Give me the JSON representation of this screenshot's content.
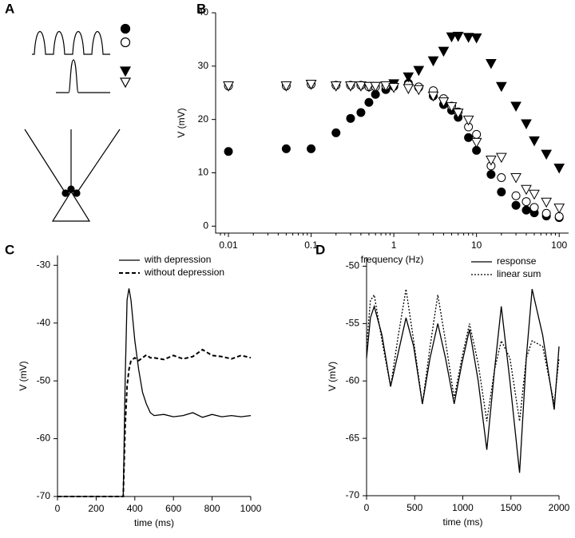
{
  "panel_labels": [
    "A",
    "B",
    "C",
    "D"
  ],
  "chart_data": [
    {
      "type": "scatter",
      "xlabel": "frequency (Hz)",
      "ylabel": "V  (mV)",
      "xscale": "log",
      "xlim": [
        0.007,
        130
      ],
      "ylim": [
        -1.3,
        40
      ],
      "xticks": [
        0.01,
        0.1,
        1,
        10,
        100
      ],
      "yticks": [
        0,
        10,
        20,
        30,
        40
      ],
      "x": [
        0.01,
        0.05,
        0.1,
        0.2,
        0.3,
        0.4,
        0.5,
        0.6,
        0.8,
        1,
        1.5,
        2,
        3,
        4,
        5,
        6,
        8,
        10,
        15,
        20,
        30,
        40,
        50,
        70,
        100
      ],
      "series": [
        {
          "marker": "circle",
          "filled": true,
          "color": "#000000",
          "values": [
            14,
            14.5,
            14.5,
            17.5,
            20.2,
            21.3,
            23.2,
            24.7,
            25.6,
            26.2,
            26.8,
            26,
            24.4,
            22.8,
            21.7,
            20.4,
            16.6,
            14.2,
            9.7,
            6.4,
            3.9,
            3,
            2.5,
            1.9,
            1.6
          ]
        },
        {
          "marker": "circle",
          "filled": false,
          "color": "#000000",
          "values": [
            26.3,
            26.3,
            26.6,
            26.4,
            26.4,
            26.4,
            26.1,
            26.1,
            26.3,
            26.4,
            26.5,
            26.1,
            25.4,
            23.9,
            22.5,
            21.4,
            18.6,
            17.2,
            11.3,
            9.1,
            5.7,
            4.6,
            3.5,
            2.4,
            1.8
          ]
        },
        {
          "marker": "triangle",
          "filled": true,
          "color": "#000000",
          "values": [
            26.3,
            26.3,
            26.6,
            26.3,
            26.3,
            26.3,
            26.2,
            26.2,
            26.3,
            26.7,
            28,
            29.2,
            31,
            32.8,
            35.5,
            35.6,
            35.4,
            35.3,
            30.5,
            26.2,
            22.5,
            19.2,
            16,
            13.5,
            10.9
          ]
        },
        {
          "marker": "triangle",
          "filled": false,
          "color": "#000000",
          "values": [
            26.3,
            26.3,
            26.6,
            26.3,
            26.3,
            26.3,
            26.2,
            26.2,
            26.3,
            26,
            25.8,
            25.6,
            24.4,
            23.3,
            22.4,
            21.2,
            19.9,
            15.7,
            12.4,
            12.9,
            9.1,
            6.9,
            6,
            4.5,
            3.4
          ]
        }
      ]
    },
    {
      "type": "line",
      "xlabel": "time  (ms)",
      "ylabel": "V  (mV)",
      "legend": "upper right",
      "xlim": [
        0,
        1000
      ],
      "ylim": [
        -70,
        -28.3
      ],
      "xticks": [
        0,
        200,
        400,
        600,
        800,
        1000
      ],
      "yticks": [
        -70,
        -60,
        -50,
        -40,
        -30
      ],
      "x": [
        0,
        100,
        200,
        300,
        340,
        350,
        360,
        370,
        380,
        400,
        420,
        440,
        460,
        480,
        500,
        550,
        600,
        650,
        700,
        750,
        800,
        850,
        900,
        950,
        1000
      ],
      "series": [
        {
          "name": "with depression",
          "dash": "solid",
          "color": "#000000",
          "values": [
            -70,
            -70,
            -70,
            -70,
            -70,
            -50,
            -36,
            -34,
            -36,
            -43,
            -48,
            -52,
            -54,
            -55.5,
            -56,
            -55.8,
            -56.2,
            -56,
            -55.5,
            -56.3,
            -55.8,
            -56.2,
            -56,
            -56.2,
            -56
          ]
        },
        {
          "name": "without depression",
          "dash": "dashed",
          "color": "#000000",
          "values": [
            -70,
            -70,
            -70,
            -70,
            -70,
            -58,
            -51,
            -48,
            -46.5,
            -46,
            -46.5,
            -46,
            -45.5,
            -46,
            -46,
            -46.3,
            -45.6,
            -46.2,
            -45.8,
            -44.6,
            -45.6,
            -45.8,
            -46.2,
            -45.6,
            -46
          ]
        }
      ]
    },
    {
      "type": "line",
      "xlabel": "time  (ms)",
      "ylabel": "V  (mV)",
      "legend": "upper right",
      "xlim": [
        0,
        2000
      ],
      "ylim": [
        -70,
        -49.2
      ],
      "xticks": [
        0,
        500,
        1000,
        1500,
        2000
      ],
      "yticks": [
        -70,
        -65,
        -60,
        -55,
        -50
      ],
      "x": [
        0,
        40,
        80,
        160,
        250,
        330,
        410,
        490,
        580,
        660,
        740,
        820,
        910,
        990,
        1070,
        1160,
        1250,
        1330,
        1400,
        1490,
        1590,
        1660,
        1720,
        1830,
        1950,
        2000
      ],
      "series": [
        {
          "name": "response",
          "dash": "solid",
          "color": "#000000",
          "values": [
            -58,
            -54.5,
            -53.5,
            -56,
            -60.5,
            -57.5,
            -54.5,
            -57,
            -62,
            -58,
            -55,
            -58,
            -62,
            -58.5,
            -55.5,
            -60,
            -66,
            -59,
            -53.5,
            -60,
            -68,
            -58,
            -52,
            -56,
            -62.5,
            -57
          ]
        },
        {
          "name": "linear sum",
          "dash": "dotted",
          "color": "#000000",
          "values": [
            -57,
            -53,
            -52.5,
            -56.5,
            -60.5,
            -56,
            -52,
            -56.5,
            -62,
            -57,
            -52.5,
            -56.5,
            -61.5,
            -58,
            -55,
            -58.5,
            -63.5,
            -59,
            -56.5,
            -58,
            -63.5,
            -58,
            -56.5,
            -57,
            -62,
            -58
          ]
        }
      ]
    }
  ]
}
